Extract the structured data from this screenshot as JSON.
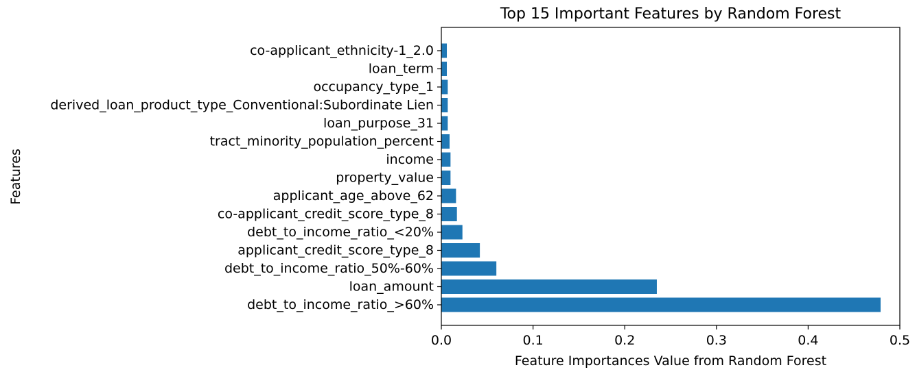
{
  "chart_data": {
    "type": "bar",
    "orientation": "horizontal",
    "title": "Top 15 Important Features by Random Forest",
    "xlabel": "Feature Importances Value from Random Forest",
    "ylabel": "Features",
    "categories": [
      "debt_to_income_ratio_>60%",
      "loan_amount",
      "debt_to_income_ratio_50%-60%",
      "applicant_credit_score_type_8",
      "debt_to_income_ratio_<20%",
      "co-applicant_credit_score_type_8",
      "applicant_age_above_62",
      "property_value",
      "income",
      "tract_minority_population_percent",
      "loan_purpose_31",
      "derived_loan_product_type_Conventional:Subordinate Lien",
      "occupancy_type_1",
      "loan_term",
      "co-applicant_ethnicity-1_2.0"
    ],
    "values": [
      0.479,
      0.235,
      0.06,
      0.042,
      0.023,
      0.017,
      0.016,
      0.01,
      0.01,
      0.009,
      0.007,
      0.007,
      0.007,
      0.006,
      0.006
    ],
    "xlim": [
      0,
      0.5
    ],
    "xticks": [
      "0.0",
      "0.1",
      "0.2",
      "0.3",
      "0.4",
      "0.5"
    ],
    "xtick_values": [
      0,
      0.1,
      0.2,
      0.3,
      0.4,
      0.5
    ],
    "grid": false,
    "bar_color": "#1f77b4"
  }
}
